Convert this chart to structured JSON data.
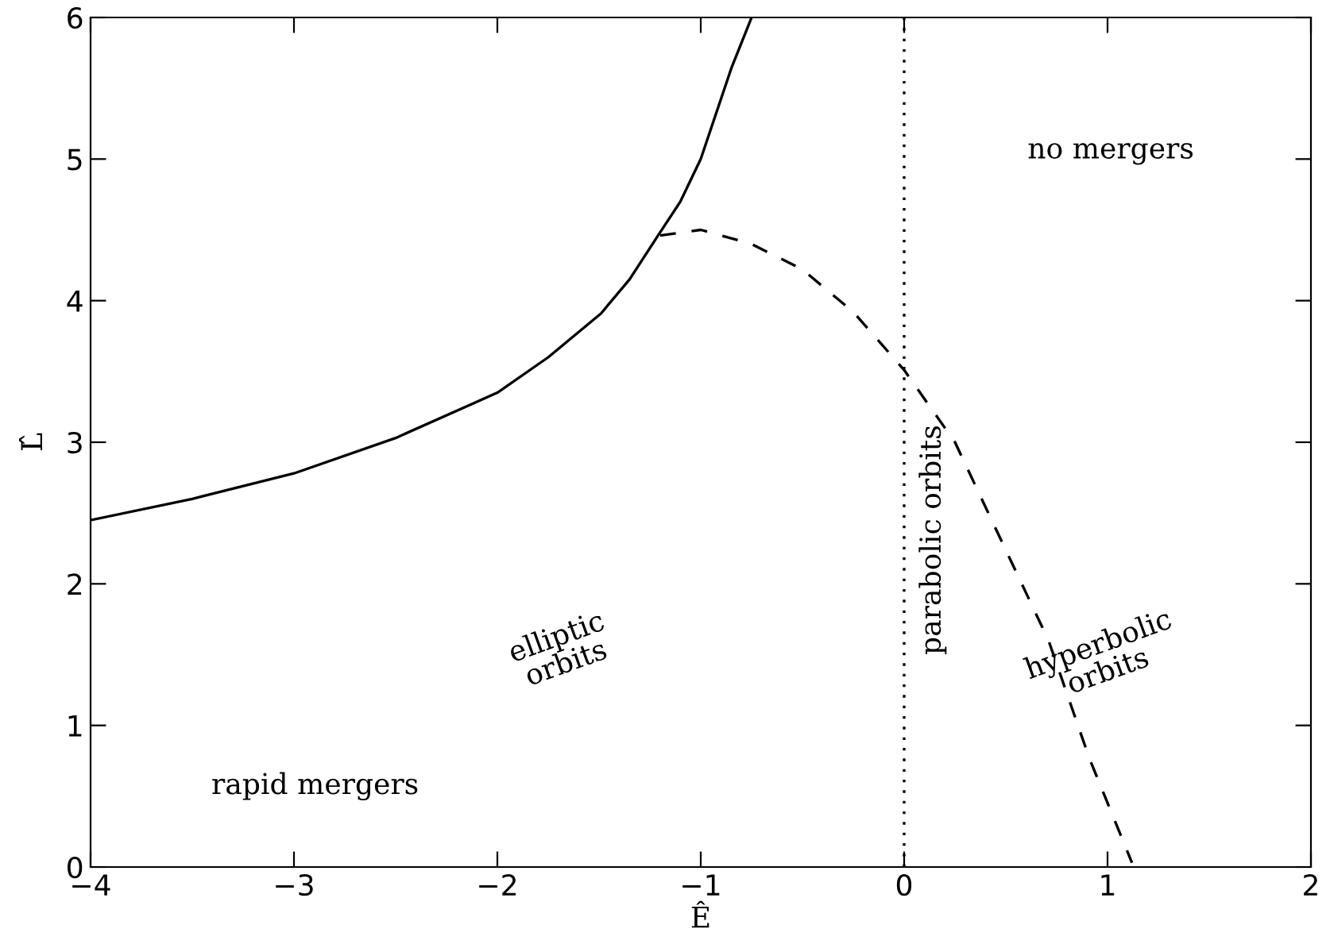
{
  "chart_data": {
    "type": "line",
    "xlabel": "Ê",
    "ylabel": "L̂",
    "xlim": [
      -4,
      2
    ],
    "ylim": [
      0,
      6
    ],
    "xticks": [
      {
        "value": -4,
        "label": "−4"
      },
      {
        "value": -3,
        "label": "−3"
      },
      {
        "value": -2,
        "label": "−2"
      },
      {
        "value": -1,
        "label": "−1"
      },
      0,
      1,
      2
    ],
    "yticks": [
      0,
      1,
      2,
      3,
      4,
      5,
      6
    ],
    "grid": false,
    "marker": "none",
    "series": [
      {
        "color": "#000000",
        "line_style": "solid",
        "x": [
          -4,
          -3.5,
          -3,
          -2.5,
          -2,
          -1.75,
          -1.49,
          -1.35,
          -1.21,
          -1.1,
          -1.0,
          -0.85,
          -0.75
        ],
        "values": [
          2.45,
          2.6,
          2.78,
          3.03,
          3.35,
          3.6,
          3.91,
          4.15,
          4.46,
          4.7,
          5.0,
          5.64,
          6.0
        ]
      },
      {
        "color": "#000000",
        "line_style": "dashed",
        "x": [
          -1.2,
          -1.0,
          -0.75,
          -0.5,
          -0.25,
          0,
          0.25,
          0.45,
          0.71,
          0.91,
          1.12
        ],
        "values": [
          4.46,
          4.5,
          4.4,
          4.22,
          3.92,
          3.51,
          3.0,
          2.39,
          1.6,
          0.77,
          0.03
        ]
      }
    ],
    "ref_lines": [
      {
        "axis": "x",
        "value": 0,
        "color": "#000000",
        "line_style": "dotted"
      }
    ],
    "annotations": [
      "rapid mergers",
      "elliptic\norbits",
      "no mergers",
      "parabolic orbits",
      "hyperbolic\norbits"
    ]
  }
}
